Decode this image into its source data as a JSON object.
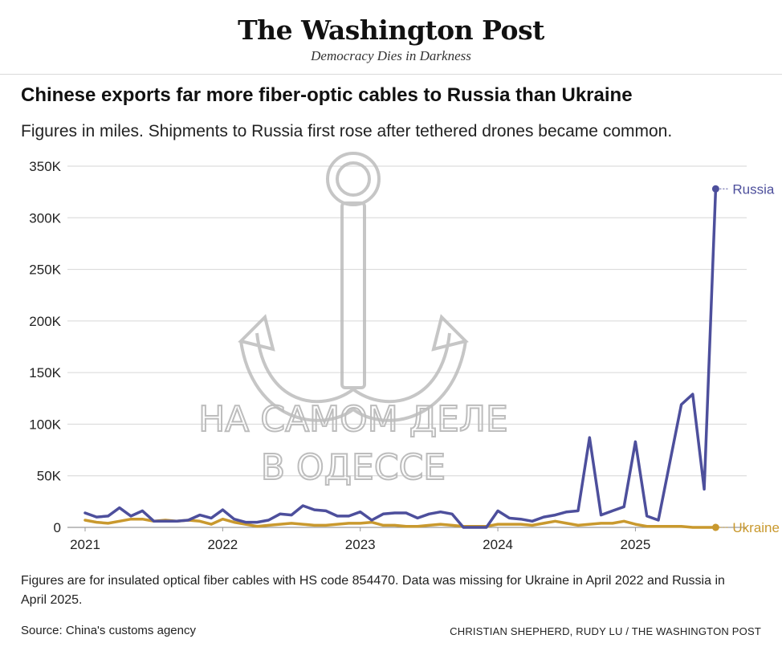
{
  "masthead": {
    "logo": "The Washington Post",
    "tagline": "Democracy Dies in Darkness"
  },
  "watermark": {
    "line1": "НА САМОМ ДЕЛЕ",
    "line2": "В ОДЕССЕ",
    "icon": "anchor-icon"
  },
  "note": "Figures are for insulated optical fiber cables with HS code 854470. Data was missing for Ukraine in April 2022 and Russia in April 2025.",
  "source": "Source: China's customs agency",
  "credit": "CHRISTIAN SHEPHERD, RUDY LU / THE WASHINGTON POST",
  "chart_data": {
    "type": "line",
    "title": "Chinese exports far more fiber-optic cables to Russia than Ukraine",
    "subtitle": "Figures in miles. Shipments to Russia first rose after tethered drones became common.",
    "x_start": "2021-01",
    "x_tick_labels": [
      "2021",
      "2022",
      "2023",
      "2024",
      "2025"
    ],
    "y_tick_labels": [
      "0",
      "50K",
      "100K",
      "150K",
      "200K",
      "250K",
      "300K",
      "350K"
    ],
    "ylim": [
      0,
      350000
    ],
    "grid": true,
    "series": [
      {
        "name": "Russia",
        "color": "#4d4f9c",
        "values": [
          14000,
          10000,
          11000,
          19000,
          11000,
          16000,
          6000,
          6000,
          6000,
          7000,
          12000,
          9000,
          17000,
          8000,
          5000,
          5000,
          7000,
          13000,
          12000,
          21000,
          17000,
          16000,
          11000,
          11000,
          15000,
          7000,
          13000,
          14000,
          14000,
          9000,
          13000,
          15000,
          13000,
          0,
          0,
          0,
          16000,
          9000,
          8000,
          6000,
          10000,
          12000,
          15000,
          16000,
          87000,
          12000,
          16000,
          20000,
          83000,
          11000,
          7000,
          63000,
          119000,
          129000,
          37000,
          328000
        ]
      },
      {
        "name": "Ukraine",
        "color": "#c9992e",
        "values": [
          7000,
          5000,
          4000,
          6000,
          8000,
          8000,
          6000,
          7000,
          6000,
          7000,
          6000,
          3000,
          8000,
          5000,
          3000,
          1000,
          2000,
          3000,
          4000,
          3000,
          2000,
          2000,
          3000,
          4000,
          4000,
          5000,
          2000,
          2000,
          1000,
          1000,
          2000,
          3000,
          2000,
          1000,
          1000,
          1000,
          3000,
          3000,
          3000,
          2000,
          4000,
          6000,
          4000,
          2000,
          3000,
          4000,
          4000,
          6000,
          3000,
          1000,
          1000,
          1000,
          1000,
          0,
          0,
          0
        ]
      }
    ]
  }
}
